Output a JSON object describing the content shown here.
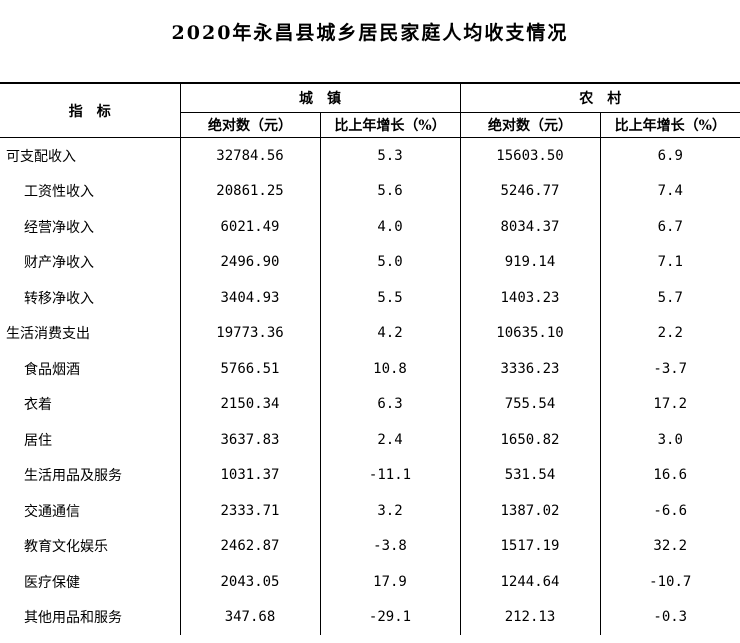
{
  "title": "2020年永昌县城乡居民家庭人均收支情况",
  "header": {
    "indicator": "指　标",
    "urban": "城　镇",
    "rural": "农　村",
    "absolute": "绝对数（元）",
    "growth": "比上年增长（%）"
  },
  "rows": [
    {
      "name": "可支配收入",
      "u_abs": "32784.56",
      "u_g": "5.3",
      "r_abs": "15603.50",
      "r_g": "6.9"
    },
    {
      "name": "工资性收入",
      "u_abs": "20861.25",
      "u_g": "5.6",
      "r_abs": "5246.77",
      "r_g": "7.4"
    },
    {
      "name": "经营净收入",
      "u_abs": "6021.49",
      "u_g": "4.0",
      "r_abs": "8034.37",
      "r_g": "6.7"
    },
    {
      "name": "财产净收入",
      "u_abs": "2496.90",
      "u_g": "5.0",
      "r_abs": "919.14",
      "r_g": "7.1"
    },
    {
      "name": "转移净收入",
      "u_abs": "3404.93",
      "u_g": "5.5",
      "r_abs": "1403.23",
      "r_g": "5.7"
    },
    {
      "name": "生活消费支出",
      "u_abs": "19773.36",
      "u_g": "4.2",
      "r_abs": "10635.10",
      "r_g": "2.2"
    },
    {
      "name": "食品烟酒",
      "u_abs": "5766.51",
      "u_g": "10.8",
      "r_abs": "3336.23",
      "r_g": "-3.7"
    },
    {
      "name": "衣着",
      "u_abs": "2150.34",
      "u_g": "6.3",
      "r_abs": "755.54",
      "r_g": "17.2"
    },
    {
      "name": "居住",
      "u_abs": "3637.83",
      "u_g": "2.4",
      "r_abs": "1650.82",
      "r_g": "3.0"
    },
    {
      "name": "生活用品及服务",
      "u_abs": "1031.37",
      "u_g": "-11.1",
      "r_abs": "531.54",
      "r_g": "16.6"
    },
    {
      "name": "交通通信",
      "u_abs": "2333.71",
      "u_g": "3.2",
      "r_abs": "1387.02",
      "r_g": "-6.6"
    },
    {
      "name": "教育文化娱乐",
      "u_abs": "2462.87",
      "u_g": "-3.8",
      "r_abs": "1517.19",
      "r_g": "32.2"
    },
    {
      "name": "医疗保健",
      "u_abs": "2043.05",
      "u_g": "17.9",
      "r_abs": "1244.64",
      "r_g": "-10.7"
    },
    {
      "name": "其他用品和服务",
      "u_abs": "347.68",
      "u_g": "-29.1",
      "r_abs": "212.13",
      "r_g": "-0.3"
    }
  ]
}
